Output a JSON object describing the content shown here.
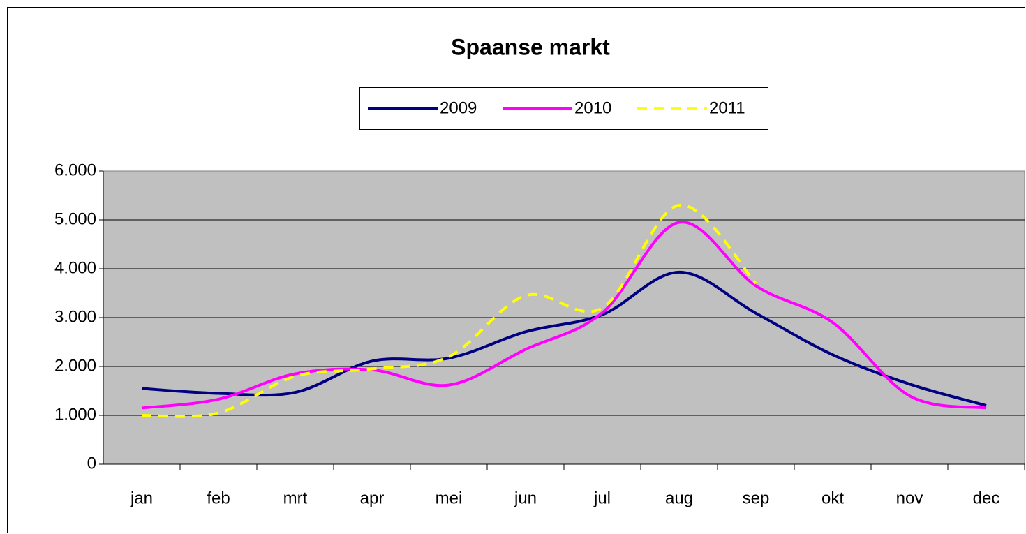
{
  "chart_data": {
    "type": "line",
    "title": "Spaanse markt",
    "categories": [
      "jan",
      "feb",
      "mrt",
      "apr",
      "mei",
      "jun",
      "jul",
      "aug",
      "sep",
      "okt",
      "nov",
      "dec"
    ],
    "series": [
      {
        "name": "2009",
        "color": "#000080",
        "dash": "solid",
        "values": [
          1550,
          1450,
          1470,
          2110,
          2170,
          2710,
          3060,
          3930,
          3090,
          2240,
          1640,
          1200
        ]
      },
      {
        "name": "2010",
        "color": "#ff00ff",
        "dash": "solid",
        "values": [
          1150,
          1330,
          1850,
          1930,
          1620,
          2350,
          3100,
          4950,
          3650,
          2900,
          1400,
          1150
        ]
      },
      {
        "name": "2011",
        "color": "#ffff00",
        "dash": "dashed",
        "values": [
          1000,
          1050,
          1800,
          1950,
          2200,
          3450,
          3200,
          5300,
          3700,
          null,
          null,
          null
        ]
      }
    ],
    "ylim": [
      0,
      6000
    ],
    "yticks": [
      0,
      {
        "value": 1000,
        "label": "1.000"
      },
      {
        "value": 2000,
        "label": "2.000"
      },
      {
        "value": 3000,
        "label": "3.000"
      },
      {
        "value": 4000,
        "label": "4.000"
      },
      {
        "value": 5000,
        "label": "5.000"
      },
      {
        "value": 6000,
        "label": "6.000"
      }
    ],
    "grid": true,
    "legend": "top"
  }
}
